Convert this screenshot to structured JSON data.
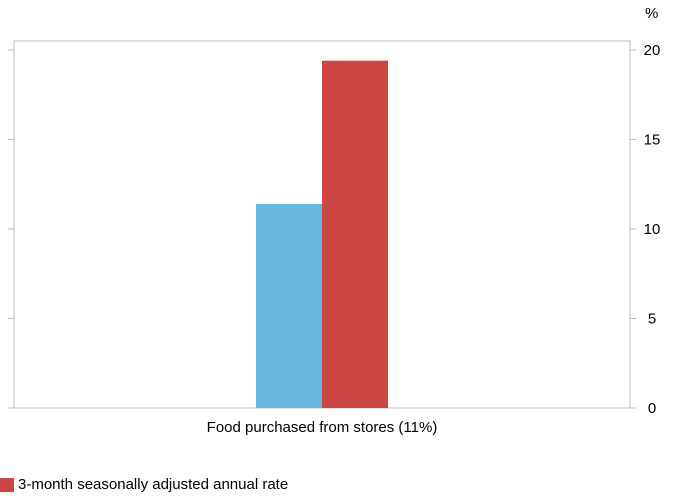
{
  "chart_data": {
    "type": "bar",
    "categories": [
      "Food purchased from stores (11%)"
    ],
    "series": [
      {
        "name": "",
        "values": [
          11.4
        ],
        "color": "#68b8e0"
      },
      {
        "name": "3-month seasonally adjusted annual rate",
        "values": [
          19.4
        ],
        "color": "#cd4646"
      }
    ],
    "y_unit": "%",
    "yticks": [
      0,
      5,
      10,
      15,
      20
    ],
    "ylim": [
      0,
      20.5
    ],
    "y_axis_side": "right",
    "grid": false,
    "legend_position": "bottom-left"
  }
}
